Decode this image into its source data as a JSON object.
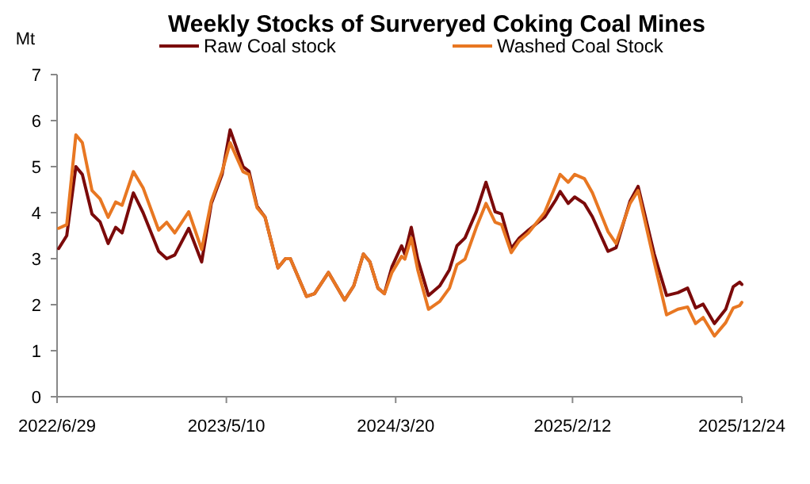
{
  "chart_data": {
    "type": "line",
    "title": "Weekly Stocks of Surveryed Coking Coal Mines",
    "ylabel": "Mt",
    "x": [
      "2022-07-02",
      "2022-07-17",
      "2022-08-03",
      "2022-08-15",
      "2022-09-02",
      "2022-09-17",
      "2022-10-02",
      "2022-10-16",
      "2022-10-28",
      "2022-11-18",
      "2022-12-06",
      "2023-01-04",
      "2023-01-19",
      "2023-02-03",
      "2023-03-01",
      "2023-03-25",
      "2023-04-12",
      "2023-05-02",
      "2023-05-17",
      "2023-06-10",
      "2023-06-21",
      "2023-07-06",
      "2023-07-21",
      "2023-08-14",
      "2023-08-28",
      "2023-09-06",
      "2023-10-06",
      "2023-10-21",
      "2023-11-16",
      "2023-12-16",
      "2024-01-02",
      "2024-01-20",
      "2024-02-01",
      "2024-02-16",
      "2024-02-28",
      "2024-03-13",
      "2024-03-31",
      "2024-04-06",
      "2024-04-18",
      "2024-04-30",
      "2024-05-20",
      "2024-06-10",
      "2024-06-28",
      "2024-07-12",
      "2024-07-27",
      "2024-08-17",
      "2024-09-04",
      "2024-09-21",
      "2024-10-03",
      "2024-10-21",
      "2024-11-05",
      "2024-11-22",
      "2024-12-22",
      "2025-01-12",
      "2025-01-20",
      "2025-02-04",
      "2025-02-16",
      "2025-03-06",
      "2025-03-21",
      "2025-04-19",
      "2025-05-04",
      "2025-05-30",
      "2025-06-14",
      "2025-07-14",
      "2025-08-06",
      "2025-08-27",
      "2025-09-14",
      "2025-09-29",
      "2025-10-13",
      "2025-11-03",
      "2025-11-24",
      "2025-12-08",
      "2025-12-20",
      "2025-12-24"
    ],
    "series": [
      {
        "name": "Raw Coal stock",
        "color": "#7b0a0a",
        "values": [
          3.22,
          3.5,
          5.0,
          4.83,
          3.97,
          3.8,
          3.33,
          3.68,
          3.56,
          4.43,
          4.0,
          3.16,
          3.0,
          3.08,
          3.66,
          2.93,
          4.2,
          4.83,
          5.8,
          5.0,
          4.9,
          4.14,
          3.9,
          2.8,
          3.0,
          3.0,
          2.18,
          2.24,
          2.7,
          2.1,
          2.41,
          3.1,
          2.93,
          2.36,
          2.24,
          2.82,
          3.28,
          3.1,
          3.68,
          2.99,
          2.2,
          2.41,
          2.76,
          3.28,
          3.45,
          4.02,
          4.66,
          4.02,
          3.97,
          3.22,
          3.45,
          3.62,
          3.9,
          4.28,
          4.46,
          4.2,
          4.34,
          4.2,
          3.91,
          3.16,
          3.24,
          4.25,
          4.57,
          3.1,
          2.2,
          2.26,
          2.36,
          1.93,
          2.01,
          1.59,
          1.9,
          2.39,
          2.49,
          2.44
        ]
      },
      {
        "name": "Washed Coal Stock",
        "color": "#e87722",
        "values": [
          3.66,
          3.74,
          5.69,
          5.52,
          4.48,
          4.3,
          3.9,
          4.23,
          4.16,
          4.89,
          4.54,
          3.62,
          3.79,
          3.56,
          4.02,
          3.2,
          4.25,
          4.89,
          5.52,
          4.89,
          4.83,
          4.11,
          3.9,
          2.8,
          3.0,
          3.0,
          2.18,
          2.24,
          2.7,
          2.1,
          2.41,
          3.1,
          2.93,
          2.36,
          2.24,
          2.7,
          3.05,
          2.99,
          3.45,
          2.76,
          1.9,
          2.07,
          2.36,
          2.87,
          2.99,
          3.68,
          4.2,
          3.79,
          3.74,
          3.13,
          3.39,
          3.56,
          4.0,
          4.6,
          4.83,
          4.66,
          4.83,
          4.74,
          4.43,
          3.59,
          3.33,
          4.2,
          4.48,
          2.93,
          1.78,
          1.9,
          1.95,
          1.59,
          1.72,
          1.32,
          1.61,
          1.93,
          1.98,
          2.05
        ]
      }
    ],
    "xlim": [
      "2022-06-29",
      "2025-12-24"
    ],
    "xticks": [
      {
        "value": "2022-06-29",
        "label": "2022/6/29"
      },
      {
        "value": "2023-05-10",
        "label": "2023/5/10"
      },
      {
        "value": "2024-03-20",
        "label": "2024/3/20"
      },
      {
        "value": "2025-02-12",
        "label": "2025/2/12"
      },
      {
        "value": "2025-12-24",
        "label": "2025/12/24"
      }
    ],
    "ylim": [
      0,
      7
    ],
    "yticks": [
      0,
      1,
      2,
      3,
      4,
      5,
      6,
      7
    ],
    "legend": "top",
    "line_style": "solid"
  }
}
